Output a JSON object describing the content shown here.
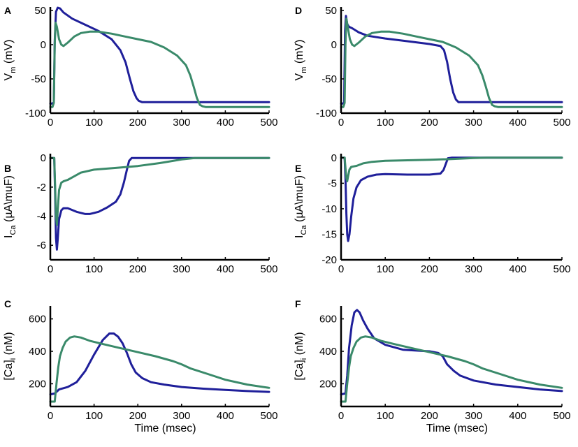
{
  "chart_data": [
    {
      "type": "line",
      "panel": "A",
      "ylabel": {
        "main": "V",
        "sub": "m",
        "rest": " (mV)"
      },
      "xlabel": "",
      "xlim": [
        0,
        500
      ],
      "ylim": [
        -100,
        55
      ],
      "xticks": [
        0,
        100,
        200,
        300,
        400,
        500
      ],
      "yticks": [
        -100,
        -50,
        0,
        50
      ],
      "series": [
        {
          "name": "blue",
          "color": "#1f1f9a",
          "x": [
            0,
            5,
            8,
            10,
            13,
            17,
            22,
            30,
            50,
            80,
            110,
            140,
            160,
            172,
            182,
            190,
            197,
            202,
            210,
            250,
            300,
            400,
            500
          ],
          "y": [
            -86,
            -86,
            -84,
            5,
            48,
            54,
            53,
            47,
            38,
            29,
            20,
            8,
            -8,
            -26,
            -50,
            -68,
            -78,
            -82,
            -84,
            -84,
            -84,
            -84,
            -84
          ]
        },
        {
          "name": "green",
          "color": "#3a8a6a",
          "x": [
            0,
            5,
            8,
            10,
            12,
            15,
            20,
            25,
            30,
            40,
            55,
            70,
            90,
            110,
            140,
            170,
            200,
            230,
            260,
            290,
            310,
            320,
            328,
            335,
            342,
            348,
            355,
            400,
            500
          ],
          "y": [
            -91,
            -91,
            -85,
            0,
            32,
            26,
            8,
            0,
            -2,
            3,
            12,
            17,
            19,
            19,
            16,
            12,
            8,
            4,
            -4,
            -16,
            -30,
            -45,
            -62,
            -78,
            -88,
            -90,
            -91,
            -91,
            -91
          ]
        }
      ]
    },
    {
      "type": "line",
      "panel": "D",
      "ylabel": {
        "main": "V",
        "sub": "m",
        "rest": " (mV)"
      },
      "xlabel": "",
      "xlim": [
        0,
        500
      ],
      "ylim": [
        -100,
        55
      ],
      "xticks": [
        0,
        100,
        200,
        300,
        400,
        500
      ],
      "yticks": [
        -100,
        -50,
        0,
        50
      ],
      "series": [
        {
          "name": "blue",
          "color": "#1f1f9a",
          "x": [
            0,
            5,
            7,
            9,
            11,
            14,
            18,
            25,
            40,
            60,
            100,
            150,
            200,
            225,
            233,
            240,
            247,
            254,
            260,
            266,
            275,
            300,
            400,
            500
          ],
          "y": [
            -86,
            -86,
            -84,
            20,
            42,
            30,
            26,
            24,
            18,
            13,
            9,
            5,
            1,
            -2,
            -8,
            -25,
            -50,
            -70,
            -80,
            -84,
            -84,
            -84,
            -84,
            -84
          ]
        },
        {
          "name": "green",
          "color": "#3a8a6a",
          "x": [
            0,
            5,
            8,
            10,
            12,
            15,
            20,
            25,
            30,
            40,
            55,
            70,
            90,
            110,
            140,
            170,
            200,
            230,
            260,
            290,
            310,
            320,
            328,
            335,
            342,
            348,
            355,
            400,
            500
          ],
          "y": [
            -91,
            -91,
            -85,
            0,
            38,
            26,
            8,
            0,
            -2,
            3,
            12,
            17,
            19,
            19,
            16,
            12,
            8,
            4,
            -4,
            -16,
            -30,
            -45,
            -62,
            -78,
            -88,
            -90,
            -91,
            -91,
            -91
          ]
        }
      ]
    },
    {
      "type": "line",
      "panel": "B",
      "ylabel": {
        "main": "I",
        "sub": "Ca",
        "rest": " (µA\\muF)"
      },
      "xlabel": "",
      "xlim": [
        0,
        500
      ],
      "ylim": [
        -7,
        0.3
      ],
      "xticks": [
        0,
        100,
        200,
        300,
        400,
        500
      ],
      "yticks": [
        -6,
        -4,
        -2,
        0
      ],
      "series": [
        {
          "name": "blue",
          "color": "#1f1f9a",
          "x": [
            0,
            9,
            11,
            13,
            15,
            17,
            20,
            25,
            30,
            40,
            60,
            80,
            90,
            110,
            130,
            150,
            160,
            168,
            175,
            180,
            186,
            200,
            300,
            500
          ],
          "y": [
            0,
            0,
            -2.5,
            -5.5,
            -6.3,
            -5.6,
            -4.2,
            -3.6,
            -3.45,
            -3.45,
            -3.7,
            -3.85,
            -3.85,
            -3.7,
            -3.4,
            -3.0,
            -2.5,
            -1.7,
            -0.8,
            -0.2,
            0,
            0,
            0,
            0
          ]
        },
        {
          "name": "green",
          "color": "#3a8a6a",
          "x": [
            0,
            9,
            11,
            13,
            15,
            17,
            20,
            25,
            30,
            40,
            55,
            70,
            100,
            150,
            200,
            250,
            300,
            330,
            400,
            500
          ],
          "y": [
            0,
            0,
            -2.0,
            -4.0,
            -4.6,
            -3.6,
            -2.2,
            -1.7,
            -1.6,
            -1.5,
            -1.25,
            -1.0,
            -0.8,
            -0.68,
            -0.55,
            -0.35,
            -0.1,
            0,
            0,
            0
          ]
        }
      ]
    },
    {
      "type": "line",
      "panel": "E",
      "ylabel": {
        "main": "I",
        "sub": "Ca",
        "rest": " (µA\\muF)"
      },
      "xlabel": "",
      "xlim": [
        0,
        500
      ],
      "ylim": [
        -20,
        0.8
      ],
      "xticks": [
        0,
        100,
        200,
        300,
        400,
        500
      ],
      "yticks": [
        -20,
        -15,
        -10,
        -5,
        0
      ],
      "series": [
        {
          "name": "blue",
          "color": "#1f1f9a",
          "x": [
            0,
            8,
            10,
            12,
            14,
            16,
            19,
            23,
            28,
            35,
            45,
            60,
            80,
            100,
            150,
            200,
            225,
            232,
            238,
            242,
            250,
            300,
            500
          ],
          "y": [
            0,
            0,
            -4,
            -11,
            -15,
            -16.3,
            -15,
            -11.5,
            -8,
            -5.8,
            -4.4,
            -3.7,
            -3.3,
            -3.2,
            -3.3,
            -3.3,
            -3.1,
            -2.4,
            -1.0,
            -0.1,
            0,
            0,
            0
          ]
        },
        {
          "name": "green",
          "color": "#3a8a6a",
          "x": [
            0,
            8,
            10,
            12,
            14,
            16,
            19,
            23,
            28,
            35,
            50,
            70,
            100,
            150,
            200,
            250,
            300,
            330,
            400,
            500
          ],
          "y": [
            0,
            0,
            -2,
            -4,
            -4.6,
            -3.6,
            -2.3,
            -1.8,
            -1.7,
            -1.6,
            -1.1,
            -0.8,
            -0.6,
            -0.5,
            -0.4,
            -0.25,
            -0.05,
            0,
            0,
            0
          ]
        }
      ]
    },
    {
      "type": "line",
      "panel": "C",
      "ylabel": {
        "main": "[Ca]",
        "sub": "i",
        "rest": " (nM)"
      },
      "xlabel": "Time (msec)",
      "xlim": [
        0,
        500
      ],
      "ylim": [
        60,
        680
      ],
      "xticks": [
        0,
        100,
        200,
        300,
        400,
        500
      ],
      "yticks": [
        200,
        400,
        600
      ],
      "series": [
        {
          "name": "blue",
          "color": "#1f1f9a",
          "x": [
            0,
            10,
            20,
            40,
            60,
            80,
            100,
            120,
            135,
            145,
            155,
            165,
            175,
            185,
            195,
            210,
            230,
            260,
            300,
            350,
            400,
            450,
            500
          ],
          "y": [
            135,
            140,
            165,
            180,
            210,
            280,
            380,
            470,
            510,
            510,
            490,
            450,
            390,
            320,
            270,
            235,
            210,
            195,
            180,
            170,
            162,
            155,
            150
          ]
        },
        {
          "name": "green",
          "color": "#3a8a6a",
          "x": [
            0,
            10,
            14,
            18,
            22,
            28,
            35,
            45,
            55,
            70,
            90,
            120,
            160,
            200,
            240,
            280,
            300,
            320,
            360,
            400,
            450,
            500
          ],
          "y": [
            90,
            90,
            200,
            300,
            370,
            420,
            460,
            485,
            492,
            485,
            465,
            445,
            420,
            395,
            370,
            340,
            320,
            295,
            260,
            225,
            195,
            175
          ]
        }
      ]
    },
    {
      "type": "line",
      "panel": "F",
      "ylabel": {
        "main": "[Ca]",
        "sub": "i",
        "rest": " (nM)"
      },
      "xlabel": "Time (msec)",
      "xlim": [
        0,
        500
      ],
      "ylim": [
        60,
        680
      ],
      "xticks": [
        0,
        100,
        200,
        300,
        400,
        500
      ],
      "yticks": [
        200,
        400,
        600
      ],
      "series": [
        {
          "name": "blue",
          "color": "#1f1f9a",
          "x": [
            0,
            10,
            14,
            18,
            24,
            30,
            36,
            42,
            50,
            60,
            75,
            100,
            140,
            200,
            220,
            230,
            240,
            255,
            270,
            300,
            350,
            400,
            450,
            500
          ],
          "y": [
            135,
            140,
            250,
            420,
            560,
            640,
            655,
            640,
            590,
            540,
            480,
            440,
            410,
            400,
            390,
            370,
            320,
            280,
            250,
            220,
            195,
            180,
            165,
            155
          ]
        },
        {
          "name": "green",
          "color": "#3a8a6a",
          "x": [
            0,
            10,
            14,
            18,
            22,
            28,
            35,
            45,
            55,
            70,
            90,
            120,
            160,
            200,
            240,
            280,
            300,
            320,
            360,
            400,
            450,
            500
          ],
          "y": [
            90,
            90,
            200,
            300,
            370,
            420,
            460,
            485,
            492,
            485,
            465,
            445,
            420,
            395,
            370,
            340,
            320,
            295,
            260,
            225,
            195,
            175
          ]
        }
      ]
    }
  ]
}
